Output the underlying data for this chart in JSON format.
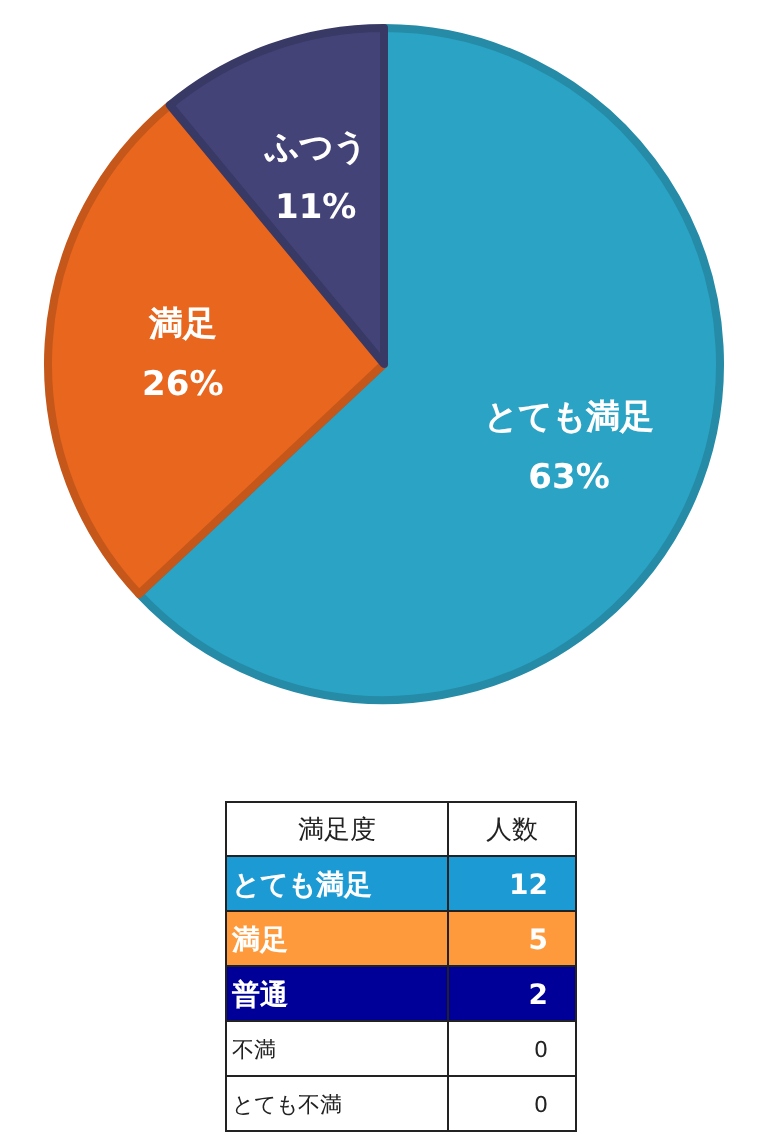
{
  "chart_data": [
    {
      "type": "pie",
      "categories": [
        "とても満足",
        "満足",
        "ふつう"
      ],
      "values": [
        63,
        26,
        11
      ],
      "value_labels": [
        "63%",
        "26%",
        "11%"
      ],
      "colors": [
        "#2ba3c4",
        "#e8661e",
        "#434377"
      ]
    },
    {
      "type": "heatmap",
      "ylabel": "満足度",
      "categories": [
        "人数"
      ],
      "y_categories": [
        "とても満足",
        "満足",
        "普通",
        "不満",
        "とても不満"
      ],
      "cells": [
        [
          12
        ],
        [
          5
        ],
        [
          2
        ],
        [
          0
        ],
        [
          0
        ]
      ],
      "data_labels": true,
      "colors": [
        "#1b9ad3",
        "#ff9a3c",
        "#000099",
        null,
        null
      ]
    }
  ]
}
